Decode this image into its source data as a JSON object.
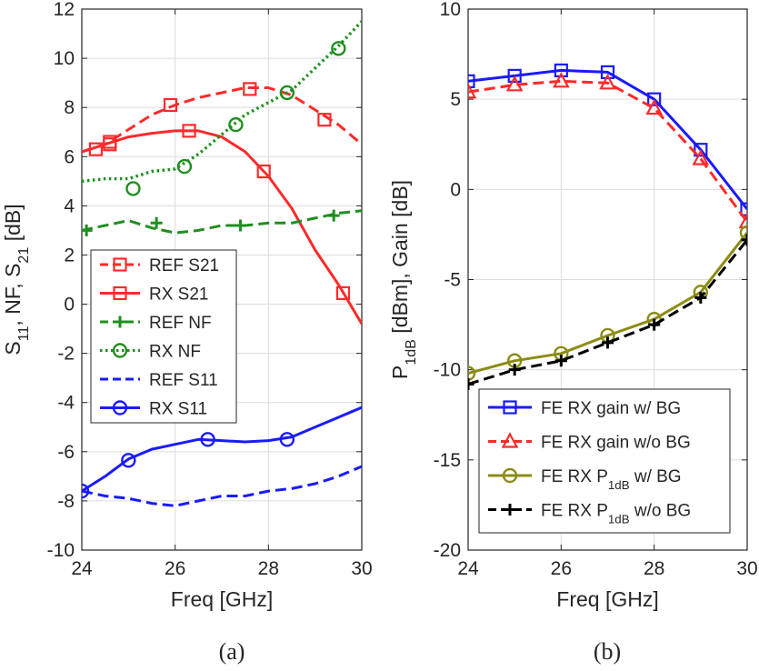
{
  "chart_data": [
    {
      "panel": "(a)",
      "type": "line",
      "xlabel": "Freq [GHz]",
      "ylabel_parts": [
        "S",
        "11",
        ", NF, S",
        "21",
        " [dB]"
      ],
      "xlim": [
        24,
        30
      ],
      "ylim": [
        -10,
        12
      ],
      "xticks": [
        24,
        26,
        28,
        30
      ],
      "yticks": [
        -10,
        -8,
        -6,
        -4,
        -2,
        0,
        2,
        4,
        6,
        8,
        10,
        12
      ],
      "grid": true,
      "legend": "center-left",
      "series": [
        {
          "name": "REF S21",
          "color": "#ff2a2a",
          "dash": "dashed",
          "marker": "square",
          "x": [
            24.0,
            24.5,
            25.0,
            25.5,
            26.0,
            26.5,
            27.0,
            27.5,
            28.0,
            28.5,
            29.0,
            29.5,
            30.0
          ],
          "y": [
            6.2,
            6.5,
            7.1,
            7.7,
            8.1,
            8.4,
            8.6,
            8.8,
            8.8,
            8.5,
            7.9,
            7.3,
            6.5
          ],
          "markers_x": [
            24.3,
            24.6,
            25.9,
            27.6,
            29.2
          ],
          "markers_y": [
            6.3,
            6.6,
            8.1,
            8.75,
            7.5
          ]
        },
        {
          "name": "RX S21",
          "color": "#ff2a2a",
          "dash": "solid",
          "marker": "square",
          "x": [
            24.0,
            24.5,
            25.0,
            25.5,
            26.0,
            26.5,
            27.0,
            27.5,
            28.0,
            28.5,
            29.0,
            29.5,
            30.0
          ],
          "y": [
            6.2,
            6.5,
            6.8,
            6.95,
            7.05,
            7.05,
            6.8,
            6.2,
            5.2,
            3.9,
            2.2,
            0.8,
            -0.8
          ],
          "markers_x": [
            24.6,
            26.3,
            27.9,
            29.6
          ],
          "markers_y": [
            6.5,
            7.05,
            5.4,
            0.45
          ]
        },
        {
          "name": "REF NF",
          "color": "#1f8f1f",
          "dash": "dashed",
          "marker": "plus",
          "x": [
            24.0,
            24.5,
            25.0,
            25.5,
            26.0,
            26.5,
            27.0,
            27.5,
            28.0,
            28.5,
            29.0,
            29.5,
            30.0
          ],
          "y": [
            3.0,
            3.2,
            3.4,
            3.1,
            2.9,
            3.0,
            3.2,
            3.2,
            3.3,
            3.3,
            3.5,
            3.7,
            3.8
          ],
          "markers_x": [
            24.1,
            25.6,
            27.4,
            29.4
          ],
          "markers_y": [
            3.0,
            3.3,
            3.2,
            3.6
          ]
        },
        {
          "name": "RX NF",
          "color": "#1f8f1f",
          "dash": "dotted",
          "marker": "circle",
          "x": [
            24.0,
            24.5,
            25.0,
            25.5,
            26.0,
            26.5,
            27.0,
            27.5,
            28.0,
            28.5,
            29.0,
            29.5,
            30.0
          ],
          "y": [
            5.0,
            5.1,
            5.1,
            5.4,
            5.5,
            6.1,
            6.9,
            7.7,
            8.2,
            8.7,
            9.6,
            10.5,
            11.5
          ],
          "markers_x": [
            25.1,
            26.2,
            27.3,
            28.4,
            29.5
          ],
          "markers_y": [
            4.7,
            5.6,
            7.3,
            8.6,
            10.4
          ]
        },
        {
          "name": "REF S11",
          "color": "#1a1aff",
          "dash": "dashed",
          "marker": "none",
          "x": [
            24.0,
            24.5,
            25.0,
            25.5,
            26.0,
            26.5,
            27.0,
            27.5,
            28.0,
            28.5,
            29.0,
            29.5,
            30.0
          ],
          "y": [
            -7.6,
            -7.8,
            -7.9,
            -8.1,
            -8.2,
            -8.0,
            -7.8,
            -7.8,
            -7.6,
            -7.5,
            -7.3,
            -7.0,
            -6.6
          ]
        },
        {
          "name": "RX S11",
          "color": "#1a1aff",
          "dash": "solid",
          "marker": "circle",
          "x": [
            24.0,
            24.5,
            25.0,
            25.5,
            26.0,
            26.5,
            27.0,
            27.5,
            28.0,
            28.5,
            29.0,
            29.5,
            30.0
          ],
          "y": [
            -7.6,
            -7.0,
            -6.3,
            -5.9,
            -5.7,
            -5.5,
            -5.55,
            -5.6,
            -5.55,
            -5.4,
            -5.0,
            -4.6,
            -4.2
          ],
          "markers_x": [
            24.0,
            25.0,
            26.7,
            28.4
          ],
          "markers_y": [
            -7.6,
            -6.35,
            -5.5,
            -5.5
          ]
        }
      ]
    },
    {
      "panel": "(b)",
      "type": "line",
      "xlabel": "Freq [GHz]",
      "ylabel_parts": [
        "P",
        "1dB",
        " [dBm], Gain [dB]"
      ],
      "xlim": [
        24,
        30
      ],
      "ylim": [
        -20,
        10
      ],
      "xticks": [
        24,
        26,
        28,
        30
      ],
      "yticks": [
        -20,
        -15,
        -10,
        -5,
        0,
        5,
        10
      ],
      "grid": true,
      "legend": "bottom-right",
      "series": [
        {
          "name_parts": [
            "FE RX gain w/ BG"
          ],
          "color": "#1a1aff",
          "dash": "solid",
          "marker": "square",
          "x": [
            24,
            25,
            26,
            27,
            28,
            29,
            30
          ],
          "y": [
            6.0,
            6.3,
            6.6,
            6.5,
            5.0,
            2.2,
            -1.1
          ]
        },
        {
          "name_parts": [
            "FE RX gain w/o BG"
          ],
          "color": "#ff2a2a",
          "dash": "dashed",
          "marker": "triangle",
          "x": [
            24,
            25,
            26,
            27,
            28,
            29,
            30
          ],
          "y": [
            5.4,
            5.8,
            6.0,
            5.9,
            4.5,
            1.7,
            -1.8
          ]
        },
        {
          "name_parts": [
            "FE RX P",
            "1dB",
            " w/ BG"
          ],
          "color": "#8c8c14",
          "dash": "solid",
          "marker": "circle",
          "x": [
            24,
            25,
            26,
            27,
            28,
            29,
            30
          ],
          "y": [
            -10.2,
            -9.5,
            -9.1,
            -8.1,
            -7.2,
            -5.7,
            -2.4
          ]
        },
        {
          "name_parts": [
            "FE RX P",
            "1dB",
            " w/o BG"
          ],
          "color": "#000000",
          "dash": "dashed",
          "marker": "plus",
          "x": [
            24,
            25,
            26,
            27,
            28,
            29,
            30
          ],
          "y": [
            -10.8,
            -10.0,
            -9.5,
            -8.5,
            -7.5,
            -6.0,
            -2.8
          ]
        }
      ]
    }
  ]
}
